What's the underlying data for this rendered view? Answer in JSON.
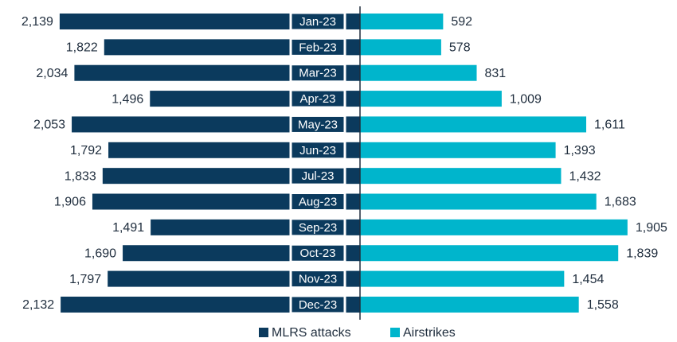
{
  "chart_data": {
    "type": "butterfly-bar",
    "categories": [
      "Jan-23",
      "Feb-23",
      "Mar-23",
      "Apr-23",
      "May-23",
      "Jun-23",
      "Jul-23",
      "Aug-23",
      "Sep-23",
      "Oct-23",
      "Nov-23",
      "Dec-23"
    ],
    "series": [
      {
        "name": "MLRS attacks",
        "color": "#0b3a5d",
        "side": "left",
        "values": [
          2139,
          1822,
          2034,
          1496,
          2053,
          1792,
          1833,
          1906,
          1491,
          1690,
          1797,
          2132
        ],
        "value_labels": [
          "2,139",
          "1,822",
          "2,034",
          "1,496",
          "2,053",
          "1,792",
          "1,833",
          "1,906",
          "1,491",
          "1,690",
          "1,797",
          "2,132"
        ]
      },
      {
        "name": "Airstrikes",
        "color": "#00b5cc",
        "side": "right",
        "values": [
          592,
          578,
          831,
          1009,
          1611,
          1393,
          1432,
          1683,
          1905,
          1839,
          1454,
          1558
        ],
        "value_labels": [
          "592",
          "578",
          "831",
          "1,009",
          "1,611",
          "1,393",
          "1,432",
          "1,683",
          "1,905",
          "1,839",
          "1,454",
          "1,558"
        ]
      }
    ],
    "legend": "bottom"
  }
}
